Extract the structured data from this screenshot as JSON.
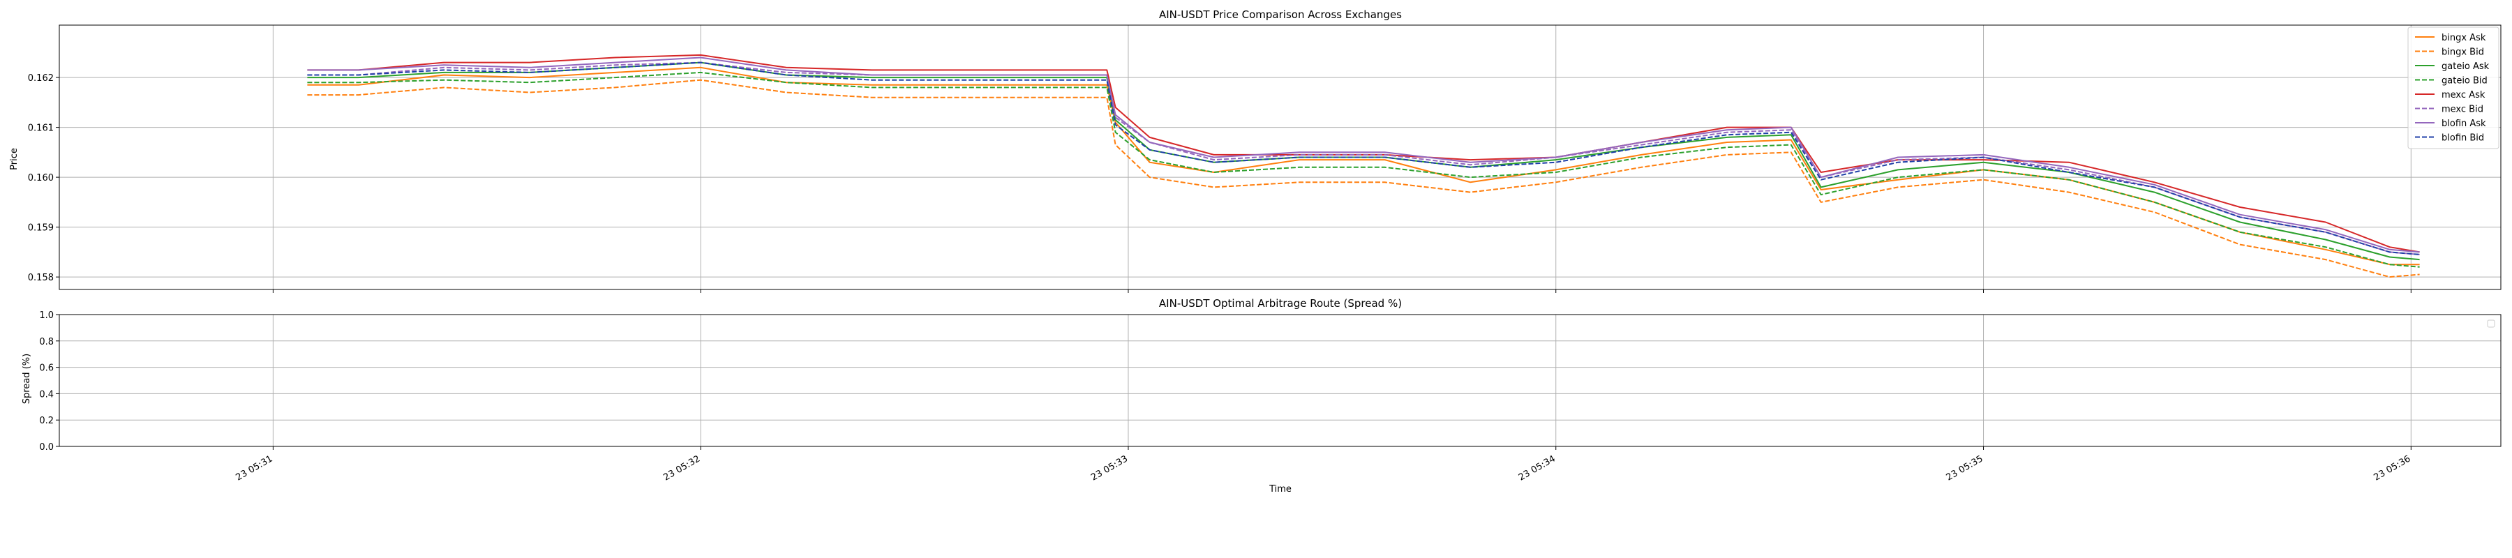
{
  "chart_data": [
    {
      "type": "line",
      "title": "AIN-USDT Price Comparison Across Exchanges",
      "xlabel": "",
      "ylabel": "Price",
      "ylim": [
        0.15775,
        0.16305
      ],
      "yticks": [
        0.158,
        0.159,
        0.16,
        0.161,
        0.162
      ],
      "ytick_labels": [
        "0.158",
        "0.159",
        "0.160",
        "0.161",
        "0.162"
      ],
      "xlim": [
        -0.5,
        5.21
      ],
      "xticks": [
        0,
        1,
        2,
        3,
        4,
        5
      ],
      "grid": true,
      "legend_position": "upper right",
      "series": [
        {
          "name": "bingx Ask",
          "color": "#ff7f0e",
          "style": "solid",
          "x": [
            0.08,
            0.2,
            0.4,
            0.6,
            0.8,
            1.0,
            1.2,
            1.4,
            1.6,
            1.8,
            1.95,
            1.97,
            2.05,
            2.2,
            2.4,
            2.6,
            2.8,
            3.0,
            3.2,
            3.4,
            3.55,
            3.62,
            3.8,
            4.0,
            4.2,
            4.4,
            4.6,
            4.8,
            4.95,
            5.02
          ],
          "y": [
            0.16185,
            0.16185,
            0.16205,
            0.162,
            0.1621,
            0.1622,
            0.1619,
            0.16185,
            0.16185,
            0.16185,
            0.16185,
            0.1611,
            0.1603,
            0.1601,
            0.16035,
            0.16035,
            0.1599,
            0.16015,
            0.16045,
            0.1607,
            0.16075,
            0.15975,
            0.15995,
            0.16015,
            0.15995,
            0.1595,
            0.1589,
            0.15855,
            0.15825,
            0.15825
          ]
        },
        {
          "name": "bingx Bid",
          "color": "#ff7f0e",
          "style": "dashed",
          "x": [
            0.08,
            0.2,
            0.4,
            0.6,
            0.8,
            1.0,
            1.2,
            1.4,
            1.6,
            1.8,
            1.95,
            1.97,
            2.05,
            2.2,
            2.4,
            2.6,
            2.8,
            3.0,
            3.2,
            3.4,
            3.55,
            3.62,
            3.8,
            4.0,
            4.2,
            4.4,
            4.6,
            4.8,
            4.95,
            5.02
          ],
          "y": [
            0.16165,
            0.16165,
            0.1618,
            0.1617,
            0.1618,
            0.16195,
            0.1617,
            0.1616,
            0.1616,
            0.1616,
            0.1616,
            0.16065,
            0.16,
            0.1598,
            0.1599,
            0.1599,
            0.1597,
            0.1599,
            0.1602,
            0.16045,
            0.1605,
            0.1595,
            0.1598,
            0.15995,
            0.1597,
            0.1593,
            0.15865,
            0.15835,
            0.158,
            0.15805
          ]
        },
        {
          "name": "gateio Ask",
          "color": "#2ca02c",
          "style": "solid",
          "x": [
            0.08,
            0.2,
            0.4,
            0.6,
            0.8,
            1.0,
            1.2,
            1.4,
            1.6,
            1.8,
            1.95,
            1.97,
            2.05,
            2.2,
            2.4,
            2.6,
            2.8,
            3.0,
            3.2,
            3.4,
            3.55,
            3.62,
            3.8,
            4.0,
            4.2,
            4.4,
            4.6,
            4.8,
            4.95,
            5.02
          ],
          "y": [
            0.162,
            0.162,
            0.1621,
            0.1621,
            0.1622,
            0.1623,
            0.16205,
            0.162,
            0.162,
            0.162,
            0.162,
            0.16115,
            0.16055,
            0.1603,
            0.1604,
            0.1604,
            0.1602,
            0.16035,
            0.1606,
            0.1608,
            0.16085,
            0.1598,
            0.16015,
            0.1603,
            0.1601,
            0.1597,
            0.1591,
            0.15875,
            0.1584,
            0.15835
          ]
        },
        {
          "name": "gateio Bid",
          "color": "#2ca02c",
          "style": "dashed",
          "x": [
            0.08,
            0.2,
            0.4,
            0.6,
            0.8,
            1.0,
            1.2,
            1.4,
            1.6,
            1.8,
            1.95,
            1.97,
            2.05,
            2.2,
            2.4,
            2.6,
            2.8,
            3.0,
            3.2,
            3.4,
            3.55,
            3.62,
            3.8,
            4.0,
            4.2,
            4.4,
            4.6,
            4.8,
            4.95,
            5.02
          ],
          "y": [
            0.1619,
            0.1619,
            0.16195,
            0.1619,
            0.162,
            0.1621,
            0.1619,
            0.1618,
            0.1618,
            0.1618,
            0.1618,
            0.1609,
            0.16035,
            0.1601,
            0.1602,
            0.1602,
            0.16,
            0.1601,
            0.1604,
            0.1606,
            0.16065,
            0.15965,
            0.16,
            0.16015,
            0.15995,
            0.1595,
            0.1589,
            0.1586,
            0.15825,
            0.1582
          ]
        },
        {
          "name": "mexc Ask",
          "color": "#d62728",
          "style": "solid",
          "x": [
            0.08,
            0.2,
            0.4,
            0.6,
            0.8,
            1.0,
            1.2,
            1.4,
            1.6,
            1.8,
            1.95,
            1.97,
            2.05,
            2.2,
            2.4,
            2.6,
            2.8,
            3.0,
            3.2,
            3.4,
            3.55,
            3.62,
            3.8,
            4.0,
            4.2,
            4.4,
            4.6,
            4.8,
            4.95,
            5.02
          ],
          "y": [
            0.16215,
            0.16215,
            0.1623,
            0.1623,
            0.1624,
            0.16245,
            0.1622,
            0.16215,
            0.16215,
            0.16215,
            0.16215,
            0.1614,
            0.1608,
            0.16045,
            0.16045,
            0.16045,
            0.16035,
            0.1604,
            0.1607,
            0.161,
            0.161,
            0.1601,
            0.16035,
            0.16035,
            0.1603,
            0.1599,
            0.1594,
            0.1591,
            0.1586,
            0.1585
          ]
        },
        {
          "name": "mexc Bid",
          "color": "#9467bd",
          "style": "dashed",
          "x": [
            0.08,
            0.2,
            0.4,
            0.6,
            0.8,
            1.0,
            1.2,
            1.4,
            1.6,
            1.8,
            1.95,
            1.97,
            2.05,
            2.2,
            2.4,
            2.6,
            2.8,
            3.0,
            3.2,
            3.4,
            3.55,
            3.62,
            3.8,
            4.0,
            4.2,
            4.4,
            4.6,
            4.8,
            4.95,
            5.02
          ],
          "y": [
            0.16205,
            0.16205,
            0.1622,
            0.16215,
            0.16225,
            0.1623,
            0.1621,
            0.16205,
            0.16205,
            0.16205,
            0.16205,
            0.1612,
            0.1607,
            0.16035,
            0.16045,
            0.16045,
            0.16025,
            0.1604,
            0.16065,
            0.1609,
            0.16095,
            0.16,
            0.16035,
            0.1604,
            0.16015,
            0.1598,
            0.1592,
            0.1589,
            0.1585,
            0.15845
          ]
        },
        {
          "name": "blofin Ask",
          "color": "#9467bd",
          "style": "solid",
          "x": [
            0.08,
            0.2,
            0.4,
            0.6,
            0.8,
            1.0,
            1.2,
            1.4,
            1.6,
            1.8,
            1.95,
            1.97,
            2.05,
            2.2,
            2.4,
            2.6,
            2.8,
            3.0,
            3.2,
            3.4,
            3.55,
            3.62,
            3.8,
            4.0,
            4.2,
            4.4,
            4.6,
            4.8,
            4.95,
            5.02
          ],
          "y": [
            0.16215,
            0.16215,
            0.16225,
            0.1622,
            0.1623,
            0.1624,
            0.16215,
            0.16205,
            0.16205,
            0.16205,
            0.16205,
            0.16125,
            0.1607,
            0.1604,
            0.1605,
            0.1605,
            0.1603,
            0.1604,
            0.1607,
            0.16095,
            0.161,
            0.16,
            0.1604,
            0.16045,
            0.1602,
            0.15985,
            0.15925,
            0.15895,
            0.15855,
            0.1585
          ]
        },
        {
          "name": "blofin Bid",
          "color": "#1f3fa8",
          "style": "dashed",
          "x": [
            0.08,
            0.2,
            0.4,
            0.6,
            0.8,
            1.0,
            1.2,
            1.4,
            1.6,
            1.8,
            1.95,
            1.97,
            2.05,
            2.2,
            2.4,
            2.6,
            2.8,
            3.0,
            3.2,
            3.4,
            3.55,
            3.62,
            3.8,
            4.0,
            4.2,
            4.4,
            4.6,
            4.8,
            4.95,
            5.02
          ],
          "y": [
            0.16205,
            0.16205,
            0.16215,
            0.1621,
            0.1622,
            0.1623,
            0.16205,
            0.16195,
            0.16195,
            0.16195,
            0.16195,
            0.16105,
            0.16055,
            0.1603,
            0.1604,
            0.1604,
            0.1602,
            0.1603,
            0.1606,
            0.16085,
            0.1609,
            0.15995,
            0.1603,
            0.1604,
            0.1601,
            0.1598,
            0.1592,
            0.1589,
            0.1585,
            0.15845
          ]
        }
      ]
    },
    {
      "type": "line",
      "title": "AIN-USDT Optimal Arbitrage Route (Spread %)",
      "xlabel": "Time",
      "ylabel": "Spread (%)",
      "ylim": [
        0.0,
        1.0
      ],
      "yticks": [
        0.0,
        0.2,
        0.4,
        0.6,
        0.8,
        1.0
      ],
      "ytick_labels": [
        "0.0",
        "0.2",
        "0.4",
        "0.6",
        "0.8",
        "1.0"
      ],
      "xlim": [
        -0.5,
        5.21
      ],
      "xticks": [
        0,
        1,
        2,
        3,
        4,
        5
      ],
      "xtick_labels": [
        "23 05:31",
        "23 05:32",
        "23 05:33",
        "23 05:34",
        "23 05:35",
        "23 05:36"
      ],
      "grid": true,
      "legend_position": "upper right",
      "series": []
    }
  ]
}
